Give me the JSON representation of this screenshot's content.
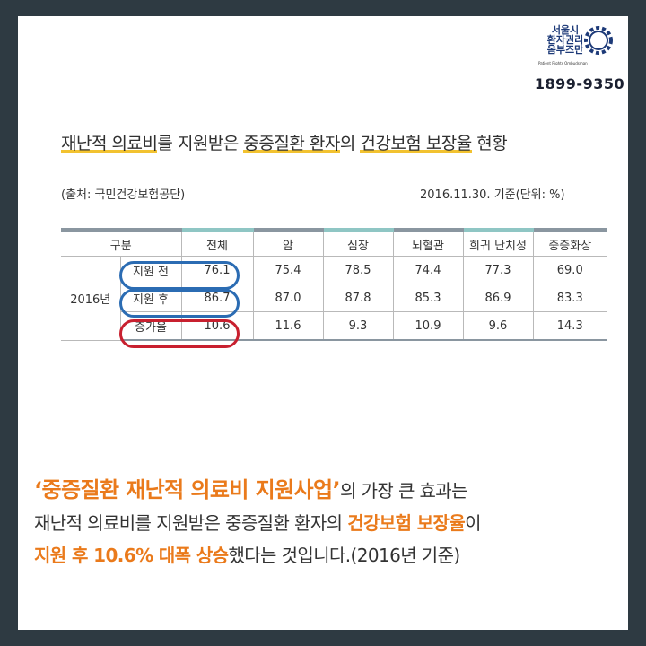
{
  "logo": {
    "line1": "서울시",
    "line2": "환자권리",
    "line3": "옴부즈만",
    "sub": "Patient Rights Ombudsman",
    "phone": "1899-9350"
  },
  "title": {
    "part1": "재난적 의료비",
    "part2": "를 지원받은 ",
    "part3": "중증질환 환자",
    "part4": "의 ",
    "part5": "건강보험 보장율",
    "part6": " 현황"
  },
  "source": "(출처: 국민건강보험공단)",
  "basis": "2016.11.30. 기준(단위: %)",
  "table": {
    "headers": [
      "구분",
      "전체",
      "암",
      "심장",
      "뇌혈관",
      "희귀 난치성",
      "중증화상"
    ],
    "year": "2016년",
    "rows": [
      {
        "label": "지원 전",
        "values": [
          "76.1",
          "75.4",
          "78.5",
          "74.4",
          "77.3",
          "69.0"
        ]
      },
      {
        "label": "지원 후",
        "values": [
          "86.7",
          "87.0",
          "87.8",
          "85.3",
          "86.9",
          "83.3"
        ]
      },
      {
        "label": "증가율",
        "values": [
          "10.6",
          "11.6",
          "9.3",
          "10.9",
          "9.6",
          "14.3"
        ]
      }
    ]
  },
  "colors": {
    "background": "#2e3a42",
    "accent_orange": "#ea7a1b",
    "accent_red": "#c8202f",
    "oval_blue": "#2b6cb3",
    "title_underline": "#f2c230"
  },
  "message": {
    "quote": "‘중증질환 재난적 의료비 지원사업’",
    "line1_rest": "의 가장 큰 효과는",
    "line2_a": "재난적 의료비를 지원받은 중증질환 환자의 ",
    "line2_b": "건강보험 보장율",
    "line2_c": "이",
    "line3_a": "지원 후 10.6% 대폭 상승",
    "line3_b": "했다는 것입니다.(2016년 기준)"
  }
}
